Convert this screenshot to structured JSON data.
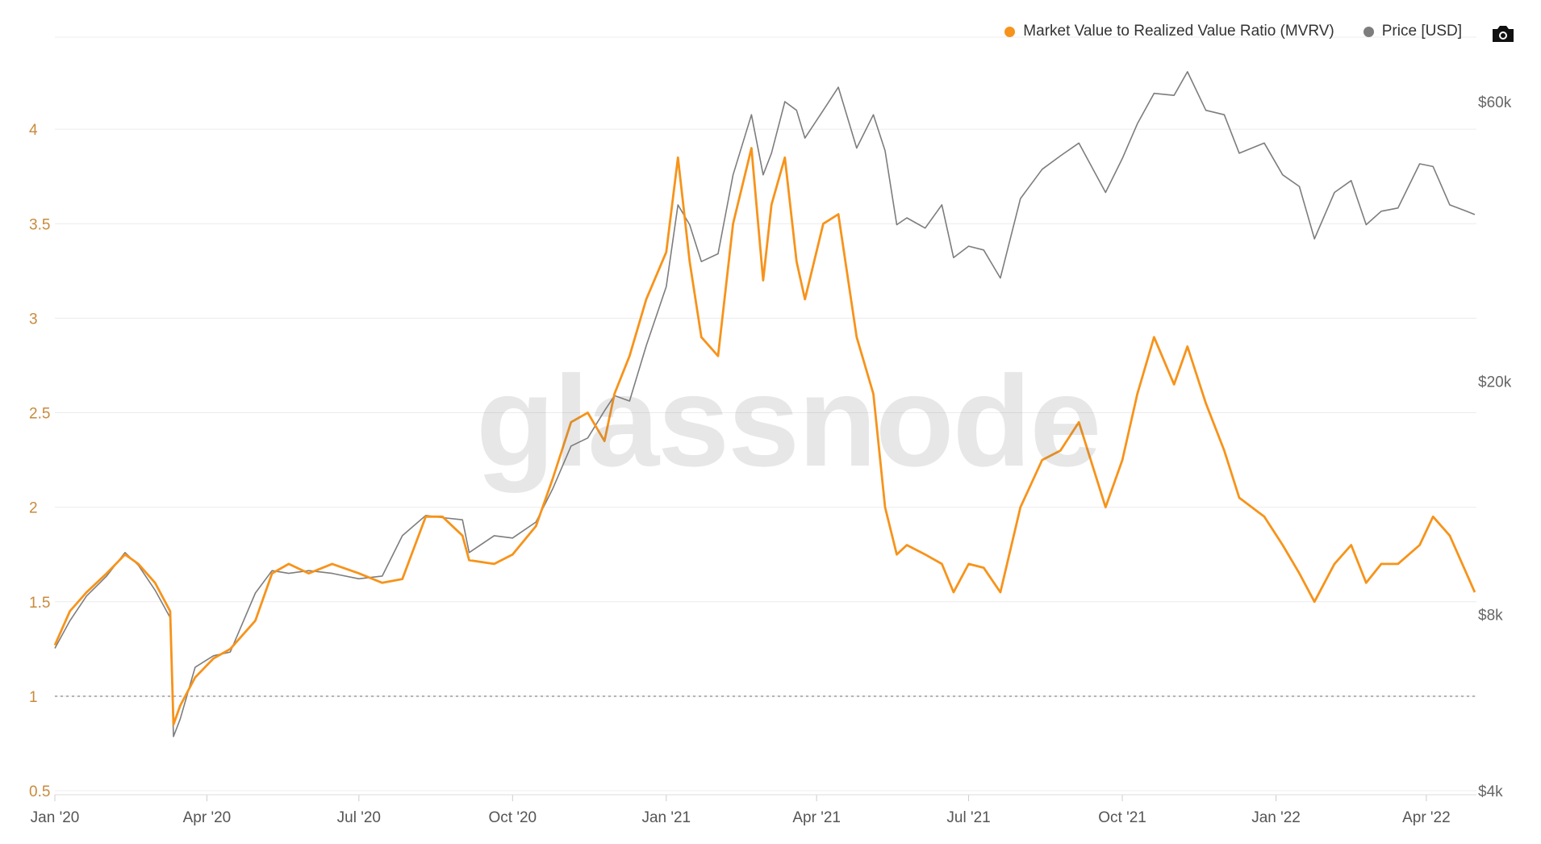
{
  "watermark": "glassnode",
  "legend": {
    "mvrv_label": "Market Value to Realized Value Ratio (MVRV)",
    "price_label": "Price [USD]"
  },
  "colors": {
    "mvrv": "#F7931A",
    "price": "#7d7d7d",
    "overlap": "#6e4a12",
    "grid": "#ececec",
    "axis_left": "#c98a3c",
    "axis_right": "#666666"
  },
  "icons": {
    "camera": "camera-icon"
  },
  "chart_data": {
    "type": "line",
    "title": "",
    "x_ticks": [
      "Jan '20",
      "Apr '20",
      "Jul '20",
      "Oct '20",
      "Jan '21",
      "Apr '21",
      "Jul '21",
      "Oct '21",
      "Jan '22",
      "Apr '22"
    ],
    "x_range": [
      "2020-01-01",
      "2022-04-30"
    ],
    "left_axis": {
      "label": "",
      "ylim": [
        0.5,
        4.5
      ],
      "ticks": [
        "0.5",
        "1",
        "1.5",
        "2",
        "2.5",
        "3",
        "3.5",
        "4"
      ],
      "reference_line": 1
    },
    "right_axis": {
      "label": "",
      "scale": "log",
      "ylim": [
        4000,
        70000
      ],
      "ticks": [
        "$4k",
        "$8k",
        "$20k",
        "$60k"
      ]
    },
    "grid": true,
    "legend_position": "top-right",
    "series": [
      {
        "name": "Market Value to Realized Value Ratio (MVRV)",
        "axis": "left",
        "x": [
          "2020-01-01",
          "2020-01-10",
          "2020-01-20",
          "2020-02-01",
          "2020-02-12",
          "2020-02-20",
          "2020-03-01",
          "2020-03-10",
          "2020-03-12",
          "2020-03-16",
          "2020-03-25",
          "2020-04-05",
          "2020-04-15",
          "2020-04-30",
          "2020-05-10",
          "2020-05-20",
          "2020-06-01",
          "2020-06-15",
          "2020-07-01",
          "2020-07-15",
          "2020-07-27",
          "2020-08-10",
          "2020-08-20",
          "2020-09-01",
          "2020-09-05",
          "2020-09-20",
          "2020-10-01",
          "2020-10-15",
          "2020-10-25",
          "2020-11-05",
          "2020-11-15",
          "2020-11-25",
          "2020-12-01",
          "2020-12-10",
          "2020-12-20",
          "2021-01-01",
          "2021-01-08",
          "2021-01-15",
          "2021-01-22",
          "2021-02-01",
          "2021-02-10",
          "2021-02-21",
          "2021-02-28",
          "2021-03-05",
          "2021-03-13",
          "2021-03-20",
          "2021-03-25",
          "2021-04-05",
          "2021-04-14",
          "2021-04-25",
          "2021-05-05",
          "2021-05-12",
          "2021-05-19",
          "2021-05-25",
          "2021-06-05",
          "2021-06-15",
          "2021-06-22",
          "2021-07-01",
          "2021-07-10",
          "2021-07-20",
          "2021-08-01",
          "2021-08-14",
          "2021-08-25",
          "2021-09-05",
          "2021-09-21",
          "2021-10-01",
          "2021-10-10",
          "2021-10-20",
          "2021-11-01",
          "2021-11-09",
          "2021-11-20",
          "2021-12-01",
          "2021-12-10",
          "2021-12-25",
          "2022-01-05",
          "2022-01-15",
          "2022-01-24",
          "2022-02-05",
          "2022-02-15",
          "2022-02-24",
          "2022-03-05",
          "2022-03-15",
          "2022-03-28",
          "2022-04-05",
          "2022-04-15",
          "2022-04-25",
          "2022-04-30"
        ],
        "values": [
          1.27,
          1.45,
          1.55,
          1.65,
          1.75,
          1.7,
          1.6,
          1.45,
          0.85,
          0.95,
          1.1,
          1.2,
          1.25,
          1.4,
          1.65,
          1.7,
          1.65,
          1.7,
          1.65,
          1.6,
          1.62,
          1.95,
          1.95,
          1.85,
          1.72,
          1.7,
          1.75,
          1.9,
          2.15,
          2.45,
          2.5,
          2.35,
          2.6,
          2.8,
          3.1,
          3.35,
          3.85,
          3.3,
          2.9,
          2.8,
          3.5,
          3.9,
          3.2,
          3.6,
          3.85,
          3.3,
          3.1,
          3.5,
          3.55,
          2.9,
          2.6,
          2.0,
          1.75,
          1.8,
          1.75,
          1.7,
          1.55,
          1.7,
          1.68,
          1.55,
          2.0,
          2.25,
          2.3,
          2.45,
          2.0,
          2.25,
          2.6,
          2.9,
          2.65,
          2.85,
          2.55,
          2.3,
          2.05,
          1.95,
          1.8,
          1.65,
          1.5,
          1.7,
          1.8,
          1.6,
          1.7,
          1.7,
          1.8,
          1.95,
          1.85,
          1.65,
          1.55
        ]
      },
      {
        "name": "Price [USD]",
        "axis": "right",
        "x": [
          "2020-01-01",
          "2020-01-10",
          "2020-01-20",
          "2020-02-01",
          "2020-02-12",
          "2020-02-20",
          "2020-03-01",
          "2020-03-10",
          "2020-03-12",
          "2020-03-16",
          "2020-03-25",
          "2020-04-05",
          "2020-04-15",
          "2020-04-30",
          "2020-05-10",
          "2020-05-20",
          "2020-06-01",
          "2020-06-15",
          "2020-07-01",
          "2020-07-15",
          "2020-07-27",
          "2020-08-10",
          "2020-08-20",
          "2020-09-01",
          "2020-09-05",
          "2020-09-20",
          "2020-10-01",
          "2020-10-15",
          "2020-10-25",
          "2020-11-05",
          "2020-11-15",
          "2020-11-25",
          "2020-12-01",
          "2020-12-10",
          "2020-12-20",
          "2021-01-01",
          "2021-01-08",
          "2021-01-15",
          "2021-01-22",
          "2021-02-01",
          "2021-02-10",
          "2021-02-21",
          "2021-02-28",
          "2021-03-05",
          "2021-03-13",
          "2021-03-20",
          "2021-03-25",
          "2021-04-05",
          "2021-04-14",
          "2021-04-25",
          "2021-05-05",
          "2021-05-12",
          "2021-05-19",
          "2021-05-25",
          "2021-06-05",
          "2021-06-15",
          "2021-06-22",
          "2021-07-01",
          "2021-07-10",
          "2021-07-20",
          "2021-08-01",
          "2021-08-14",
          "2021-08-25",
          "2021-09-05",
          "2021-09-21",
          "2021-10-01",
          "2021-10-10",
          "2021-10-20",
          "2021-11-01",
          "2021-11-09",
          "2021-11-20",
          "2021-12-01",
          "2021-12-10",
          "2021-12-25",
          "2022-01-05",
          "2022-01-15",
          "2022-01-24",
          "2022-02-05",
          "2022-02-15",
          "2022-02-24",
          "2022-03-05",
          "2022-03-15",
          "2022-03-28",
          "2022-04-05",
          "2022-04-15",
          "2022-04-25",
          "2022-04-30"
        ],
        "values": [
          7000,
          7800,
          8600,
          9300,
          10200,
          9700,
          8800,
          7900,
          4950,
          5300,
          6500,
          6800,
          6900,
          8700,
          9500,
          9400,
          9500,
          9400,
          9200,
          9300,
          10900,
          11800,
          11700,
          11600,
          10200,
          10900,
          10800,
          11500,
          13100,
          15500,
          16000,
          17800,
          18900,
          18500,
          23000,
          29000,
          40000,
          37000,
          32000,
          33000,
          45000,
          57000,
          45000,
          49000,
          60000,
          58000,
          52000,
          58000,
          63500,
          50000,
          57000,
          49500,
          37000,
          38000,
          36500,
          40000,
          32500,
          34000,
          33500,
          30000,
          41000,
          46000,
          48500,
          51000,
          42000,
          48000,
          55000,
          62000,
          61500,
          67500,
          58000,
          57000,
          49000,
          51000,
          45000,
          43000,
          35000,
          42000,
          44000,
          37000,
          39000,
          39500,
          47000,
          46500,
          40000,
          39000,
          38500
        ]
      }
    ]
  }
}
